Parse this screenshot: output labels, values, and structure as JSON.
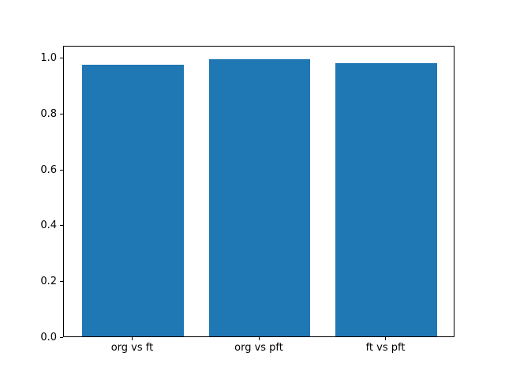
{
  "chart_data": {
    "type": "bar",
    "title": "",
    "xlabel": "",
    "ylabel": "",
    "categories": [
      "org vs ft",
      "org vs pft",
      "ft vs pft"
    ],
    "values": [
      0.975,
      0.995,
      0.98
    ],
    "ylim": [
      0,
      1.045
    ],
    "yticks": [
      0.0,
      0.2,
      0.4,
      0.6,
      0.8,
      1.0
    ],
    "ytick_labels": [
      "0.0",
      "0.2",
      "0.4",
      "0.6",
      "0.8",
      "1.0"
    ],
    "grid": "off",
    "legend": "none",
    "bar_color": "#1f77b4",
    "axis_color": "#000000",
    "background_color": "#ffffff"
  }
}
